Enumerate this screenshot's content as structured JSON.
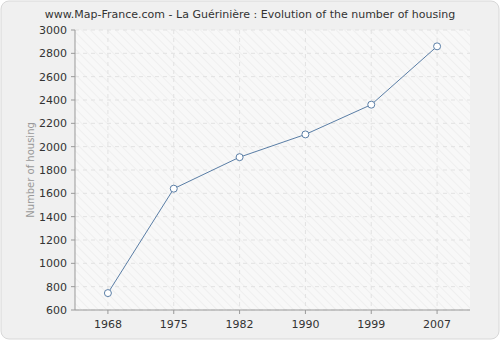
{
  "chart_data": {
    "type": "line",
    "title": "www.Map-France.com - La Guérinière : Evolution of the number of housing",
    "ylabel": "Number of housing",
    "categories": [
      "1968",
      "1975",
      "1982",
      "1990",
      "1999",
      "2007"
    ],
    "values": [
      745,
      1640,
      1910,
      2105,
      2360,
      2860
    ],
    "color": "#5a7ea6",
    "marker": "circle",
    "ylim": [
      600,
      3000
    ],
    "yticks": [
      600,
      800,
      1000,
      1200,
      1400,
      1600,
      1800,
      2000,
      2200,
      2400,
      2600,
      2800,
      3000
    ],
    "grid": true
  }
}
